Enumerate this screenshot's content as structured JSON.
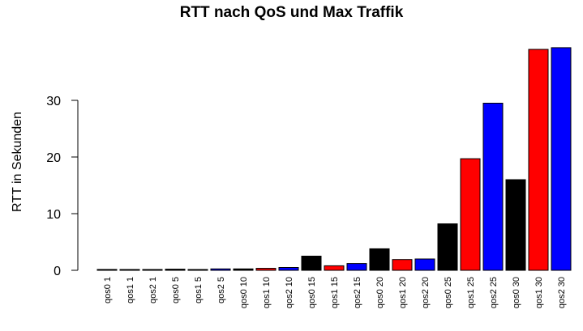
{
  "chart_data": {
    "type": "bar",
    "title": "RTT nach QoS und Max Traffik",
    "xlabel": "",
    "ylabel": "RTT in Sekunden",
    "ylim": [
      0,
      40
    ],
    "yticks": [
      0,
      10,
      20,
      30
    ],
    "grid": false,
    "categories": [
      "qos0 1",
      "qos1 1",
      "qos2 1",
      "qos0 5",
      "qos1 5",
      "qos2 5",
      "qos0 10",
      "qos1 10",
      "qos2 10",
      "qos0 15",
      "qos1 15",
      "qos2 15",
      "qos0 20",
      "qos1 20",
      "qos2 20",
      "qos0 25",
      "qos1 25",
      "qos2 25",
      "qos0 30",
      "qos1 30",
      "qos2 30"
    ],
    "values": [
      0.15,
      0.1,
      0.12,
      0.2,
      0.08,
      0.25,
      0.25,
      0.35,
      0.5,
      2.5,
      0.8,
      1.2,
      3.8,
      1.9,
      2.0,
      8.2,
      19.7,
      29.5,
      16.0,
      39.0,
      39.3
    ],
    "colors": [
      "#000000",
      "#ff0000",
      "#0000ff",
      "#000000",
      "#ff0000",
      "#0000ff",
      "#000000",
      "#ff0000",
      "#0000ff",
      "#000000",
      "#ff0000",
      "#0000ff",
      "#000000",
      "#ff0000",
      "#0000ff",
      "#000000",
      "#ff0000",
      "#0000ff",
      "#000000",
      "#ff0000",
      "#0000ff"
    ]
  }
}
